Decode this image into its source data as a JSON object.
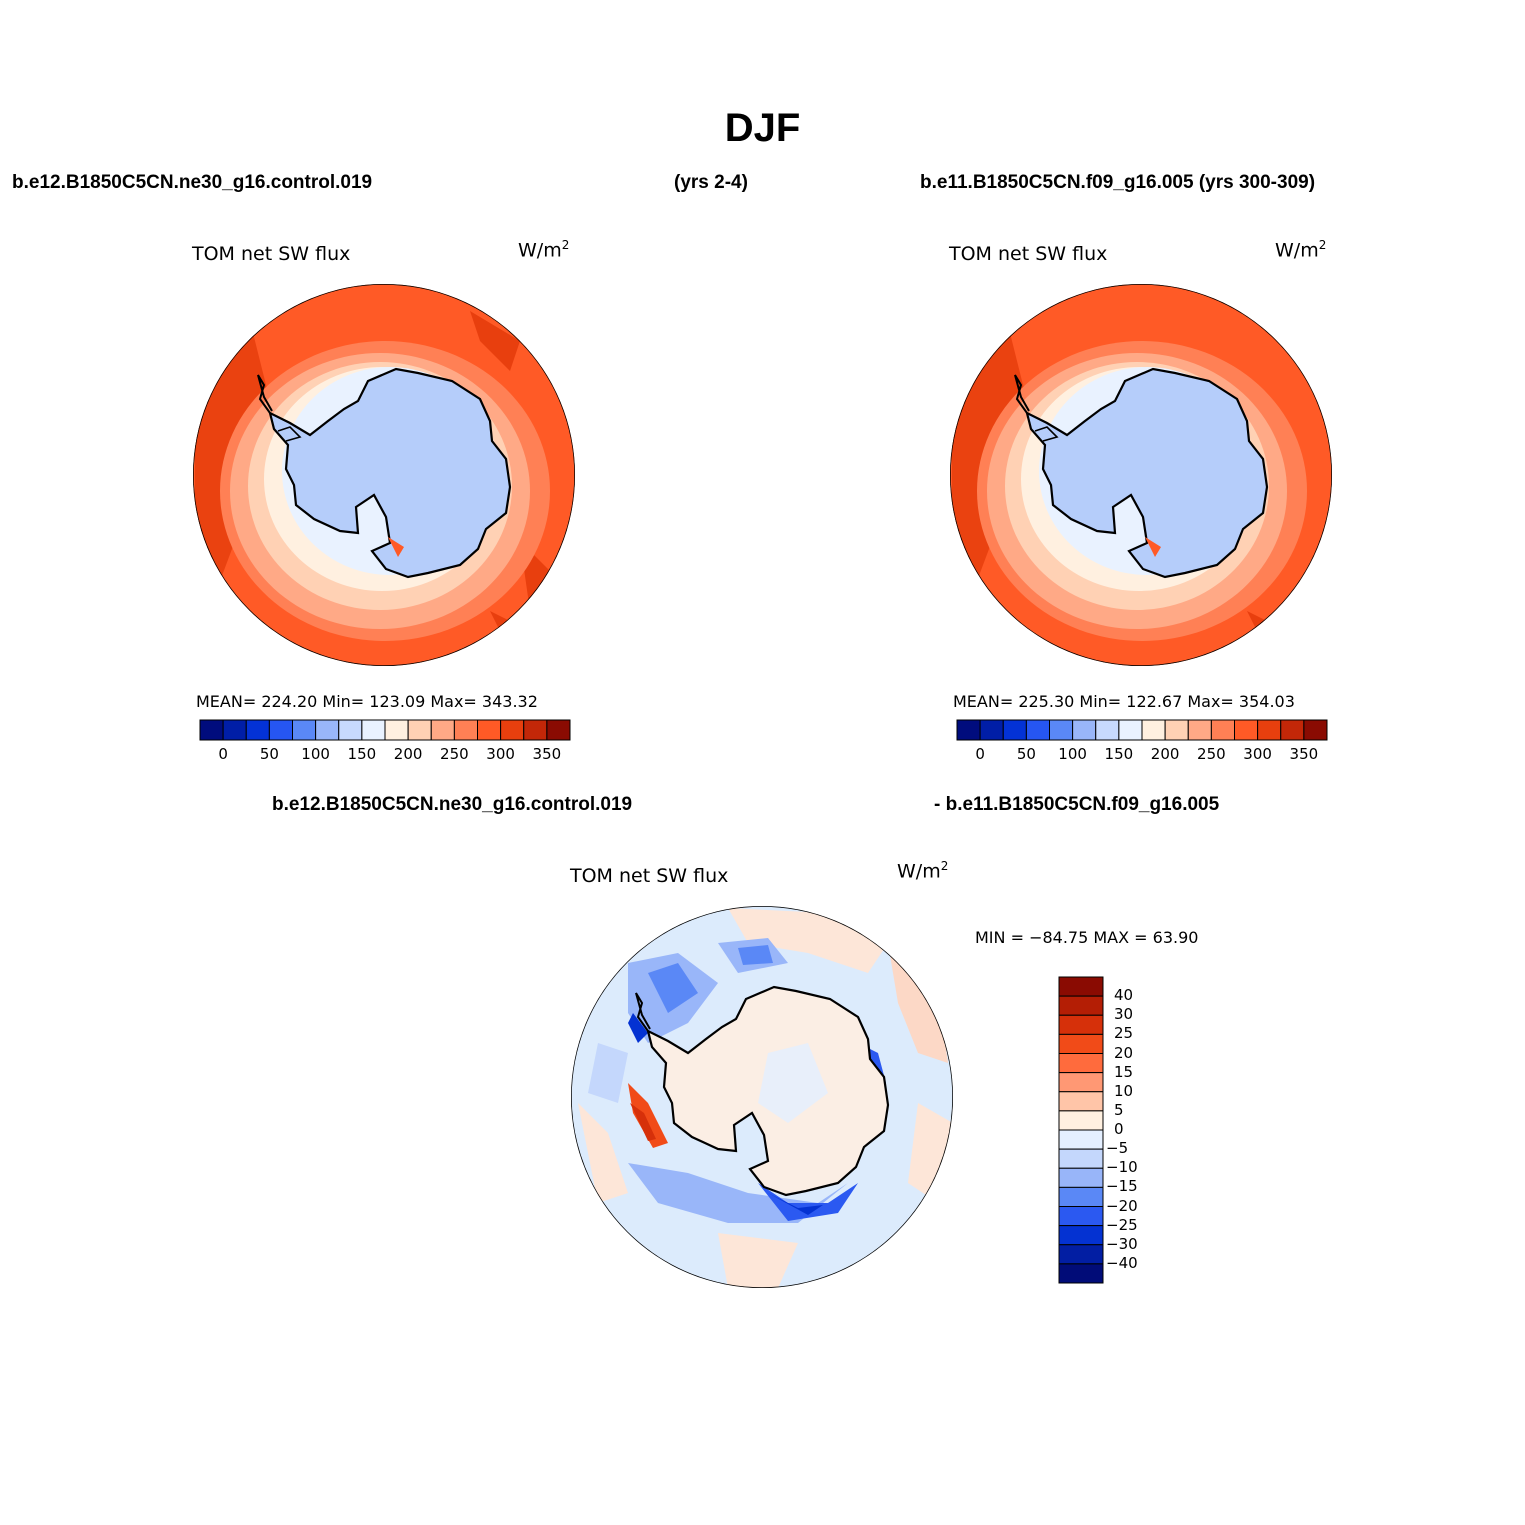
{
  "title": "DJF",
  "header": {
    "left_case": "b.e12.B1850C5CN.ne30_g16.control.019",
    "left_years": "(yrs 2-4)",
    "right_case": "b.e11.B1850C5CN.f09_g16.005 (yrs 300-309)"
  },
  "diff_header": {
    "left": "b.e12.B1850C5CN.ne30_g16.control.019",
    "right": "- b.e11.B1850C5CN.f09_g16.005"
  },
  "panels": [
    {
      "variable": "TOM net SW flux",
      "units_base": "W/m",
      "units_exp": "2",
      "stats": "MEAN= 224.20   Min= 123.09   Max= 343.32",
      "colorbar_ticks": [
        "0",
        "50",
        "100",
        "150",
        "200",
        "250",
        "300",
        "350"
      ]
    },
    {
      "variable": "TOM net SW flux",
      "units_base": "W/m",
      "units_exp": "2",
      "stats": "MEAN= 225.30   Min= 122.67   Max= 354.03",
      "colorbar_ticks": [
        "0",
        "50",
        "100",
        "150",
        "200",
        "250",
        "300",
        "350"
      ]
    }
  ],
  "diff_panel": {
    "variable": "TOM net SW flux",
    "units_base": "W/m",
    "units_exp": "2",
    "stats": "MIN = −84.75 MAX =   63.90",
    "colorbar_ticks": [
      "40",
      "30",
      "25",
      "20",
      "15",
      "10",
      "5",
      "0",
      "−5",
      "−10",
      "−15",
      "−20",
      "−25",
      "−30",
      "−40"
    ]
  },
  "colors": {
    "abs_scale": [
      "#000c7d",
      "#001ea7",
      "#0332d6",
      "#2656f3",
      "#5a88f6",
      "#99b6f9",
      "#c7d9fd",
      "#e9f2ff",
      "#fff0e0",
      "#ffd1b4",
      "#ffa986",
      "#ff8055",
      "#ff5a26",
      "#e83f0e",
      "#c32708",
      "#8a0b02"
    ],
    "diff_scale": [
      "#8a0b02",
      "#b41e05",
      "#d6300a",
      "#f14b18",
      "#ff6b3d",
      "#ff9874",
      "#ffc5a8",
      "#fff0e0",
      "#e4efff",
      "#c4d7fc",
      "#98b5f9",
      "#5a88f6",
      "#2b59f1",
      "#0432d2",
      "#021ea3",
      "#010c78"
    ],
    "continent_abs": "#b5cdfa",
    "ocean_base": "#ff5a26",
    "diff_ocean": "#dcebfc",
    "diff_land": "#fbeee4"
  }
}
